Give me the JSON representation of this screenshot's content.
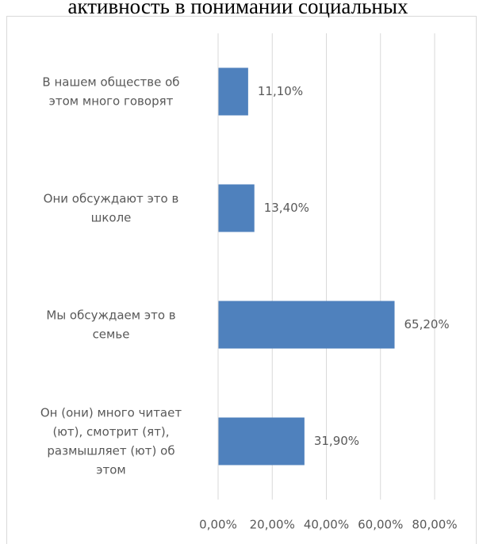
{
  "chart_data": {
    "type": "bar",
    "orientation": "horizontal",
    "title": "активность в понимании социальных",
    "categories": [
      "В нашем обществе об этом много говорят",
      "Они обсуждают это в школе",
      "Мы обсуждаем это в семье",
      "Он (они) много читает (ют), смотрит (ят), размышляет (ют) об этом"
    ],
    "values": [
      11.1,
      13.4,
      65.2,
      31.9
    ],
    "value_labels": [
      "11,10%",
      "13,40%",
      "65,20%",
      "31,90%"
    ],
    "color": "#4f81bd",
    "xlim": [
      0,
      80
    ],
    "xticks": [
      {
        "value": 0,
        "label": "0,00%"
      },
      {
        "value": 20,
        "label": "20,00%"
      },
      {
        "value": 40,
        "label": "40,00%"
      },
      {
        "value": 60,
        "label": "60,00%"
      },
      {
        "value": 80,
        "label": "80,00%"
      }
    ],
    "grid": true
  }
}
